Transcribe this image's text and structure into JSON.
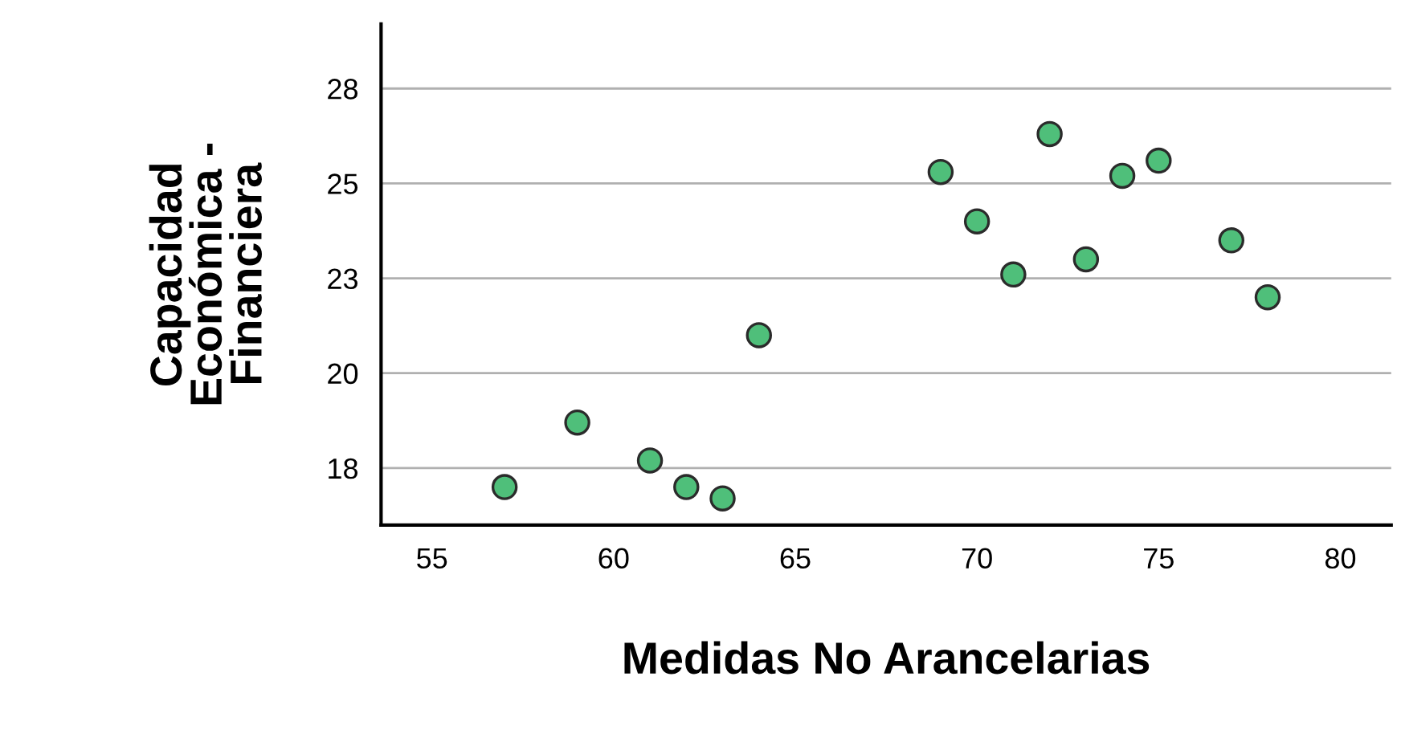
{
  "chart_data": {
    "type": "scatter",
    "xlabel": "Medidas No Arancelarias",
    "ylabel": "Capacidad\nEconómica -\nFinanciera",
    "x": [
      57,
      59,
      61,
      62,
      63,
      64,
      69,
      70,
      71,
      72,
      73,
      74,
      75,
      77,
      78
    ],
    "values": [
      17.0,
      18.7,
      17.7,
      17.0,
      16.7,
      21.0,
      25.3,
      24.0,
      22.6,
      26.3,
      23.0,
      25.2,
      25.6,
      23.5,
      22.0
    ],
    "color": "#4fbf7a",
    "marker": "circle",
    "grid": "y",
    "xlim": [
      53.6,
      81.4
    ],
    "xticks": [
      55,
      60,
      65,
      70,
      75,
      80
    ],
    "ylim": [
      16.0,
      29.2
    ],
    "yticks": [
      {
        "value": 17.5,
        "label": "18"
      },
      {
        "value": 20,
        "label": "20"
      },
      {
        "value": 22.5,
        "label": "23"
      },
      {
        "value": 25,
        "label": "25"
      },
      {
        "value": 27.5,
        "label": "28"
      }
    ]
  }
}
